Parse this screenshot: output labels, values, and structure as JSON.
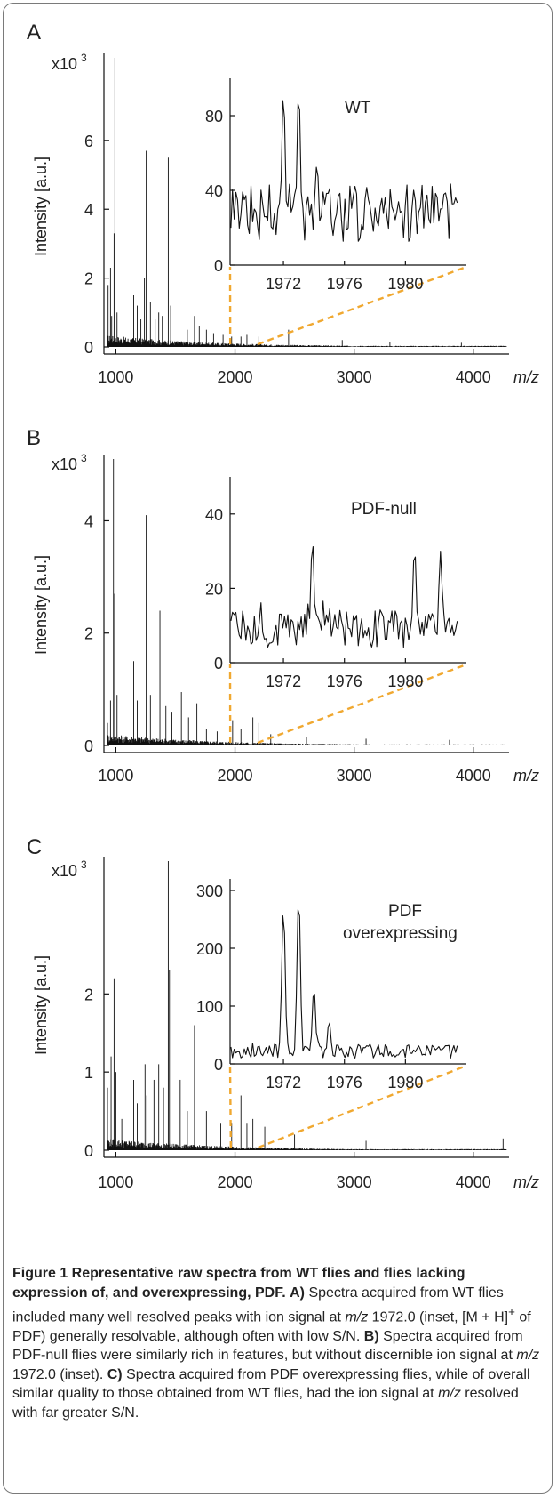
{
  "chart_data": [
    {
      "type": "line",
      "panel": "A",
      "multiplier": "x10",
      "exponent": "3",
      "ylabel": "Intensity [a.u.]",
      "xunit": "m/z",
      "xlim": [
        900,
        4300
      ],
      "ylim": [
        0,
        8.4
      ],
      "yticks": [
        0,
        2,
        4,
        6
      ],
      "xticks": [
        1000,
        2000,
        3000,
        4000
      ],
      "peaks": [
        [
          935,
          1.8
        ],
        [
          955,
          2.3
        ],
        [
          965,
          0.9
        ],
        [
          985,
          3.3
        ],
        [
          992,
          8.4
        ],
        [
          1010,
          1.0
        ],
        [
          1060,
          0.7
        ],
        [
          1150,
          1.5
        ],
        [
          1180,
          1.2
        ],
        [
          1210,
          0.8
        ],
        [
          1240,
          2.0
        ],
        [
          1255,
          5.7
        ],
        [
          1260,
          3.9
        ],
        [
          1290,
          1.3
        ],
        [
          1330,
          0.8
        ],
        [
          1360,
          1.0
        ],
        [
          1390,
          0.9
        ],
        [
          1440,
          5.5
        ],
        [
          1460,
          1.2
        ],
        [
          1530,
          0.6
        ],
        [
          1600,
          0.5
        ],
        [
          1660,
          0.9
        ],
        [
          1700,
          0.6
        ],
        [
          1760,
          0.5
        ],
        [
          1820,
          0.4
        ],
        [
          1900,
          0.35
        ],
        [
          1972,
          0.3
        ],
        [
          2050,
          0.3
        ],
        [
          2100,
          0.35
        ],
        [
          2200,
          0.3
        ],
        [
          2450,
          0.5
        ],
        [
          2900,
          0.2
        ],
        [
          3300,
          0.15
        ],
        [
          3900,
          0.12
        ]
      ],
      "inset": {
        "label": "WT",
        "xlim": [
          1968.5,
          1984
        ],
        "ylim": [
          0,
          100
        ],
        "yticks": [
          0,
          40,
          80
        ],
        "xticks": [
          1972,
          1976,
          1980
        ],
        "peaks": [
          [
            1972.0,
            93
          ],
          [
            1973.0,
            94
          ],
          [
            1974.2,
            55
          ]
        ],
        "baseline": 28
      }
    },
    {
      "type": "line",
      "panel": "B",
      "multiplier": "x10",
      "exponent": "3",
      "ylabel": "Intensity [a.u.]",
      "xunit": "m/z",
      "xlim": [
        900,
        4300
      ],
      "ylim": [
        0,
        5.1
      ],
      "yticks": [
        0,
        2,
        4
      ],
      "xticks": [
        1000,
        2000,
        3000,
        4000
      ],
      "peaks": [
        [
          930,
          0.4
        ],
        [
          955,
          0.8
        ],
        [
          980,
          5.1
        ],
        [
          990,
          2.7
        ],
        [
          1010,
          0.9
        ],
        [
          1060,
          0.5
        ],
        [
          1150,
          1.5
        ],
        [
          1180,
          0.8
        ],
        [
          1255,
          4.1
        ],
        [
          1290,
          0.9
        ],
        [
          1370,
          2.4
        ],
        [
          1420,
          0.7
        ],
        [
          1470,
          0.6
        ],
        [
          1550,
          0.95
        ],
        [
          1610,
          0.5
        ],
        [
          1680,
          0.75
        ],
        [
          1760,
          0.3
        ],
        [
          1850,
          0.25
        ],
        [
          1980,
          0.45
        ],
        [
          2050,
          0.3
        ],
        [
          2150,
          0.5
        ],
        [
          2200,
          0.4
        ],
        [
          2300,
          0.2
        ],
        [
          2600,
          0.15
        ],
        [
          3100,
          0.12
        ],
        [
          3800,
          0.1
        ]
      ],
      "inset": {
        "label": "PDF-null",
        "xlim": [
          1968.5,
          1984
        ],
        "ylim": [
          0,
          50
        ],
        "yticks": [
          0,
          20,
          40
        ],
        "xticks": [
          1972,
          1976,
          1980
        ],
        "peaks": [
          [
            1973.9,
            33
          ],
          [
            1980.6,
            31
          ],
          [
            1982.3,
            30
          ]
        ],
        "baseline": 9
      }
    },
    {
      "type": "line",
      "panel": "C",
      "multiplier": "x10",
      "exponent": "3",
      "ylabel": "Intensity [a.u.]",
      "xunit": "m/z",
      "xlim": [
        900,
        4300
      ],
      "ylim": [
        0,
        3.7
      ],
      "yticks": [
        0,
        1,
        2
      ],
      "xticks": [
        1000,
        2000,
        3000,
        4000
      ],
      "peaks": [
        [
          930,
          0.8
        ],
        [
          960,
          1.2
        ],
        [
          985,
          2.2
        ],
        [
          1000,
          1.0
        ],
        [
          1050,
          0.4
        ],
        [
          1150,
          0.9
        ],
        [
          1180,
          0.6
        ],
        [
          1245,
          1.1
        ],
        [
          1260,
          0.7
        ],
        [
          1320,
          0.9
        ],
        [
          1360,
          1.1
        ],
        [
          1400,
          0.8
        ],
        [
          1440,
          3.7
        ],
        [
          1450,
          2.3
        ],
        [
          1540,
          0.9
        ],
        [
          1600,
          0.5
        ],
        [
          1660,
          1.6
        ],
        [
          1760,
          0.5
        ],
        [
          1880,
          0.35
        ],
        [
          1972,
          0.35
        ],
        [
          2050,
          0.7
        ],
        [
          2100,
          0.35
        ],
        [
          2150,
          0.4
        ],
        [
          2250,
          0.3
        ],
        [
          2500,
          0.2
        ],
        [
          3100,
          0.12
        ],
        [
          4250,
          0.15
        ]
      ],
      "inset": {
        "label": "PDF",
        "label2": "overexpressing",
        "xlim": [
          1968.5,
          1984
        ],
        "ylim": [
          0,
          320
        ],
        "yticks": [
          0,
          100,
          200,
          300
        ],
        "xticks": [
          1972,
          1976,
          1980
        ],
        "peaks": [
          [
            1972.0,
            272
          ],
          [
            1973.0,
            293
          ],
          [
            1974.0,
            132
          ],
          [
            1975.0,
            75
          ]
        ],
        "baseline": 22
      }
    }
  ],
  "caption": {
    "title": "Figure 1 Representative raw spectra from WT flies and flies lacking expression of, and overexpressing, PDF.",
    "a_label": "A)",
    "a_text_1": "Spectra acquired from WT flies included many well resolved peaks with ion signal at",
    "mz": "m/z",
    "a_text_2": "1972.0 (inset, [M + H]",
    "a_sup": "+",
    "a_text_3": "of PDF) generally resolvable, although often with low S/N.",
    "b_label": "B)",
    "b_text_1": "Spectra acquired from PDF-null flies were similarly rich in features, but without discernible ion signal at",
    "b_text_2": "1972.0 (inset).",
    "c_label": "C)",
    "c_text_1": "Spectra acquired from PDF overexpressing flies, while of overall similar quality to those obtained from WT flies, had the ion signal at",
    "c_text_2": "resolved with far greater S/N."
  }
}
